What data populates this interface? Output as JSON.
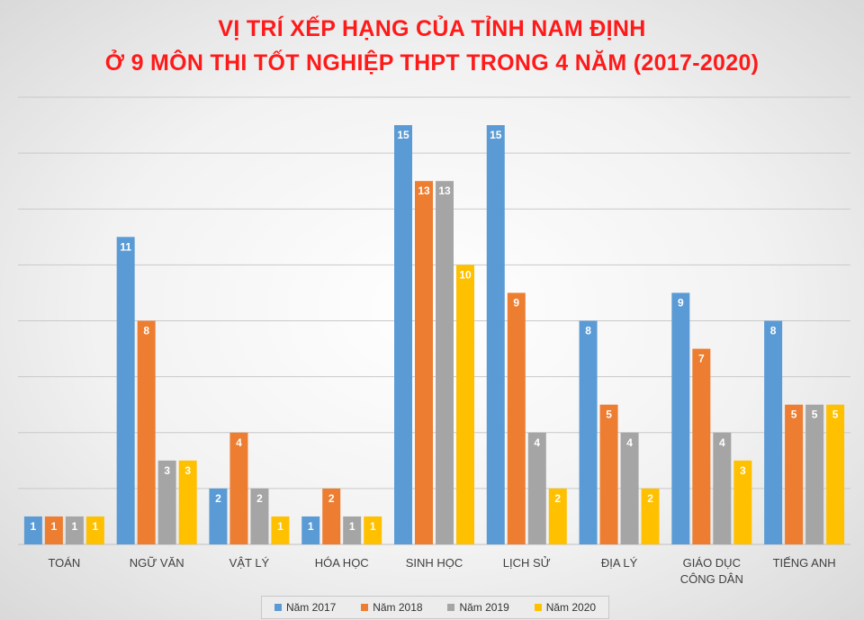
{
  "chart_data": {
    "type": "bar",
    "title": "VỊ TRÍ XẾP HẠNG CỦA TỈNH NAM ĐỊNH",
    "subtitle": "Ở 9 MÔN THI TỐT NGHIỆP THPT TRONG 4 NĂM (2017-2020)",
    "categories": [
      "TOÁN",
      "NGỮ VĂN",
      "VẬT LÝ",
      "HÓA HỌC",
      "SINH HỌC",
      "LỊCH SỬ",
      "ĐỊA LÝ",
      "GIÁO DỤC CÔNG DÂN",
      "TIẾNG ANH"
    ],
    "category_lines": [
      [
        "TOÁN"
      ],
      [
        "NGỮ VĂN"
      ],
      [
        "VẬT LÝ"
      ],
      [
        "HÓA HỌC"
      ],
      [
        "SINH HỌC"
      ],
      [
        "LỊCH SỬ"
      ],
      [
        "ĐỊA LÝ"
      ],
      [
        "GIÁO DỤC",
        "CÔNG DÂN"
      ],
      [
        "TIẾNG ANH"
      ]
    ],
    "series": [
      {
        "name": "Năm 2017",
        "color": "#5b9bd5",
        "values": [
          1,
          11,
          2,
          1,
          15,
          15,
          8,
          9,
          8
        ]
      },
      {
        "name": "Năm 2018",
        "color": "#ed7d31",
        "values": [
          1,
          8,
          4,
          2,
          13,
          9,
          5,
          7,
          5
        ]
      },
      {
        "name": "Năm 2019",
        "color": "#a5a5a5",
        "values": [
          1,
          3,
          2,
          1,
          13,
          4,
          4,
          4,
          5
        ]
      },
      {
        "name": "Năm 2020",
        "color": "#ffc000",
        "values": [
          1,
          3,
          1,
          1,
          10,
          2,
          2,
          3,
          5
        ]
      }
    ],
    "ylim": [
      0,
      16
    ],
    "grid": true,
    "y_tick_labels_shown": false,
    "data_labels": true,
    "legend": "bottom"
  }
}
